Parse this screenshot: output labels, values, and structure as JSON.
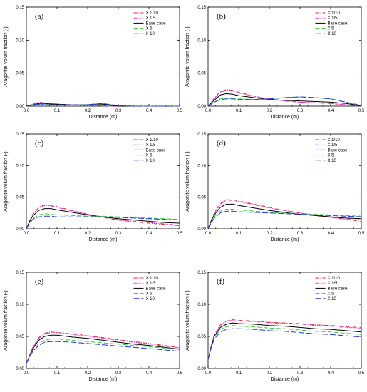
{
  "colors": {
    "X 1/10": "#e8203a",
    "X 1/5": "#e040d8",
    "Base case": "#000000",
    "X 5": "#33cc33",
    "X 10": "#2233dd"
  },
  "dashes": {
    "X 1/10": "5,2,1,2",
    "X 1/5": "5,2,1,2,1,2",
    "Base case": "",
    "X 5": "6,3",
    "X 10": "8,3"
  },
  "chart_data": [
    {
      "type": "line",
      "panel": "(a)",
      "xlabel": "Distance (m)",
      "ylabel": "Aragonite volum fraction (-)",
      "xlim": [
        0,
        0.5
      ],
      "ylim": [
        0,
        0.15
      ],
      "xticks": [
        "0.0",
        "0.1",
        "0.2",
        "0.3",
        "0.4",
        "0.5"
      ],
      "yticks": [
        "0.00",
        "0.05",
        "0.10",
        "0.15"
      ],
      "x": [
        0,
        0.02,
        0.04,
        0.06,
        0.08,
        0.1,
        0.15,
        0.2,
        0.22,
        0.25,
        0.28,
        0.3,
        0.35,
        0.4,
        0.45,
        0.5
      ],
      "series": [
        {
          "name": "X 1/10",
          "values": [
            0,
            0.003,
            0.006,
            0.005,
            0.004,
            0.003,
            0.002,
            0.001,
            0.001,
            0.0005,
            0,
            0,
            0,
            0,
            0,
            0
          ]
        },
        {
          "name": "X 1/5",
          "values": [
            0,
            0.003,
            0.006,
            0.005,
            0.004,
            0.003,
            0.002,
            0.0015,
            0.001,
            0.0005,
            0,
            0,
            0,
            0,
            0,
            0
          ]
        },
        {
          "name": "Base case",
          "values": [
            0,
            0.002,
            0.004,
            0.004,
            0.003,
            0.003,
            0.002,
            0.002,
            0.003,
            0.003,
            0.001,
            0,
            0,
            0,
            0,
            0
          ]
        },
        {
          "name": "X 5",
          "values": [
            0,
            0.002,
            0.003,
            0.003,
            0.002,
            0.002,
            0.002,
            0.002,
            0.003,
            0.004,
            0.002,
            0.001,
            0,
            0,
            0,
            0
          ]
        },
        {
          "name": "X 10",
          "values": [
            0,
            0.002,
            0.003,
            0.002,
            0.002,
            0.002,
            0.002,
            0.002,
            0.003,
            0.004,
            0.002,
            0.001,
            0,
            0,
            0,
            0
          ]
        }
      ],
      "legend": [
        "X 1/10",
        "X 1/5",
        "Base case",
        "X 5",
        "X 10"
      ]
    },
    {
      "type": "line",
      "panel": "(b)",
      "xlabel": "Distance (m)",
      "ylabel": "Aragonite volum fraction (-)",
      "xlim": [
        0,
        0.5
      ],
      "ylim": [
        0,
        0.15
      ],
      "xticks": [
        "0.0",
        "0.1",
        "0.2",
        "0.3",
        "0.4",
        "0.5"
      ],
      "yticks": [
        "0.00",
        "0.05",
        "0.10",
        "0.15"
      ],
      "x": [
        0,
        0.02,
        0.04,
        0.06,
        0.08,
        0.1,
        0.15,
        0.2,
        0.25,
        0.3,
        0.35,
        0.4,
        0.45,
        0.48,
        0.5
      ],
      "series": [
        {
          "name": "X 1/10",
          "values": [
            0,
            0.012,
            0.022,
            0.025,
            0.024,
            0.021,
            0.015,
            0.011,
            0.008,
            0.006,
            0.005,
            0.004,
            0.002,
            0.001,
            0
          ]
        },
        {
          "name": "X 1/5",
          "values": [
            0,
            0.011,
            0.021,
            0.024,
            0.023,
            0.02,
            0.015,
            0.011,
            0.008,
            0.006,
            0.005,
            0.004,
            0.002,
            0.001,
            0
          ]
        },
        {
          "name": "Base case",
          "values": [
            0,
            0.009,
            0.017,
            0.019,
            0.018,
            0.016,
            0.013,
            0.01,
            0.009,
            0.008,
            0.007,
            0.006,
            0.004,
            0.002,
            0
          ]
        },
        {
          "name": "X 5",
          "values": [
            0,
            0.006,
            0.011,
            0.012,
            0.011,
            0.011,
            0.01,
            0.011,
            0.013,
            0.014,
            0.013,
            0.011,
            0.006,
            0.003,
            0.001
          ]
        },
        {
          "name": "X 10",
          "values": [
            0,
            0.006,
            0.01,
            0.011,
            0.011,
            0.01,
            0.01,
            0.011,
            0.013,
            0.014,
            0.013,
            0.011,
            0.006,
            0.003,
            0.001
          ]
        }
      ],
      "legend": [
        "X 1/10",
        "X 1/5",
        "Base case",
        "X 5",
        "X 10"
      ]
    },
    {
      "type": "line",
      "panel": "(c)",
      "xlabel": "Distance (m)",
      "ylabel": "Aragonite volum fraction (-)",
      "xlim": [
        0,
        0.5
      ],
      "ylim": [
        0,
        0.15
      ],
      "xticks": [
        "0.0",
        "0.1",
        "0.2",
        "0.3",
        "0.4",
        "0.5"
      ],
      "yticks": [
        "0.00",
        "0.05",
        "0.10",
        "0.15"
      ],
      "x": [
        0,
        0.01,
        0.02,
        0.04,
        0.06,
        0.08,
        0.1,
        0.15,
        0.2,
        0.25,
        0.3,
        0.35,
        0.4,
        0.45,
        0.5
      ],
      "series": [
        {
          "name": "X 1/10",
          "values": [
            0,
            0.012,
            0.022,
            0.034,
            0.038,
            0.037,
            0.035,
            0.029,
            0.023,
            0.018,
            0.014,
            0.011,
            0.009,
            0.007,
            0.005
          ]
        },
        {
          "name": "X 1/5",
          "values": [
            0,
            0.012,
            0.022,
            0.033,
            0.037,
            0.036,
            0.034,
            0.028,
            0.023,
            0.018,
            0.015,
            0.012,
            0.01,
            0.008,
            0.006
          ]
        },
        {
          "name": "Base case",
          "values": [
            0,
            0.011,
            0.02,
            0.029,
            0.032,
            0.032,
            0.03,
            0.026,
            0.022,
            0.019,
            0.016,
            0.014,
            0.012,
            0.01,
            0.009
          ]
        },
        {
          "name": "X 5",
          "values": [
            0,
            0.009,
            0.016,
            0.022,
            0.024,
            0.023,
            0.022,
            0.021,
            0.02,
            0.02,
            0.019,
            0.018,
            0.017,
            0.016,
            0.015
          ]
        },
        {
          "name": "X 10",
          "values": [
            0,
            0.008,
            0.015,
            0.019,
            0.02,
            0.02,
            0.019,
            0.019,
            0.019,
            0.019,
            0.018,
            0.017,
            0.016,
            0.015,
            0.014
          ]
        }
      ],
      "legend": [
        "X 1/10",
        "X 1/5",
        "Base case",
        "X 5",
        "X 10"
      ]
    },
    {
      "type": "line",
      "panel": "(d)",
      "xlabel": "Distance (m)",
      "ylabel": "Aragonite volum fraction (-)",
      "xlim": [
        0,
        0.5
      ],
      "ylim": [
        0,
        0.15
      ],
      "xticks": [
        "0.0",
        "0.1",
        "0.2",
        "0.3",
        "0.4",
        "0.5"
      ],
      "yticks": [
        "0.00",
        "0.05",
        "0.10",
        "0.15"
      ],
      "x": [
        0,
        0.01,
        0.02,
        0.04,
        0.06,
        0.08,
        0.1,
        0.15,
        0.2,
        0.25,
        0.3,
        0.35,
        0.4,
        0.45,
        0.5
      ],
      "series": [
        {
          "name": "X 1/10",
          "values": [
            0,
            0.013,
            0.025,
            0.04,
            0.046,
            0.046,
            0.044,
            0.039,
            0.034,
            0.029,
            0.025,
            0.021,
            0.018,
            0.015,
            0.012
          ]
        },
        {
          "name": "X 1/5",
          "values": [
            0,
            0.013,
            0.024,
            0.039,
            0.045,
            0.045,
            0.043,
            0.038,
            0.033,
            0.029,
            0.025,
            0.022,
            0.019,
            0.016,
            0.014
          ]
        },
        {
          "name": "Base case",
          "values": [
            0,
            0.012,
            0.022,
            0.034,
            0.039,
            0.039,
            0.037,
            0.033,
            0.029,
            0.026,
            0.023,
            0.021,
            0.019,
            0.017,
            0.016
          ]
        },
        {
          "name": "X 5",
          "values": [
            0,
            0.01,
            0.019,
            0.028,
            0.031,
            0.031,
            0.03,
            0.028,
            0.026,
            0.025,
            0.024,
            0.023,
            0.022,
            0.021,
            0.02
          ]
        },
        {
          "name": "X 10",
          "values": [
            0,
            0.009,
            0.017,
            0.025,
            0.028,
            0.028,
            0.027,
            0.026,
            0.025,
            0.024,
            0.023,
            0.022,
            0.021,
            0.02,
            0.019
          ]
        }
      ],
      "legend": [
        "X 1/10",
        "X 1/5",
        "Base case",
        "X 5",
        "X 10"
      ]
    },
    {
      "type": "line",
      "panel": "(e)",
      "xlabel": "Distance (m)",
      "ylabel": "Aragonite volum fraction (-)",
      "xlim": [
        0,
        0.5
      ],
      "ylim": [
        0,
        0.15
      ],
      "xticks": [
        "0.0",
        "0.1",
        "0.2",
        "0.3",
        "0.4",
        "0.5"
      ],
      "yticks": [
        "0.00",
        "0.05",
        "0.10",
        "0.15"
      ],
      "x": [
        0,
        0.01,
        0.02,
        0.04,
        0.06,
        0.08,
        0.1,
        0.15,
        0.2,
        0.25,
        0.3,
        0.35,
        0.4,
        0.45,
        0.5
      ],
      "series": [
        {
          "name": "X 1/10",
          "values": [
            0.008,
            0.02,
            0.032,
            0.048,
            0.055,
            0.057,
            0.056,
            0.054,
            0.051,
            0.048,
            0.045,
            0.042,
            0.039,
            0.036,
            0.033
          ]
        },
        {
          "name": "X 1/5",
          "values": [
            0.008,
            0.02,
            0.032,
            0.047,
            0.054,
            0.056,
            0.056,
            0.053,
            0.05,
            0.047,
            0.044,
            0.041,
            0.038,
            0.035,
            0.032
          ]
        },
        {
          "name": "Base case",
          "values": [
            0.008,
            0.019,
            0.03,
            0.044,
            0.05,
            0.052,
            0.052,
            0.049,
            0.047,
            0.044,
            0.041,
            0.038,
            0.036,
            0.033,
            0.03
          ]
        },
        {
          "name": "X 5",
          "values": [
            0.008,
            0.018,
            0.027,
            0.039,
            0.044,
            0.046,
            0.046,
            0.044,
            0.042,
            0.04,
            0.038,
            0.036,
            0.034,
            0.032,
            0.03
          ]
        },
        {
          "name": "X 10",
          "values": [
            0.008,
            0.017,
            0.026,
            0.036,
            0.041,
            0.042,
            0.042,
            0.041,
            0.039,
            0.037,
            0.035,
            0.033,
            0.031,
            0.029,
            0.027
          ]
        }
      ],
      "legend": [
        "X 1/10",
        "X 1/5",
        "Base case",
        "X 5",
        "X 10"
      ]
    },
    {
      "type": "line",
      "panel": "(f)",
      "xlabel": "Distance (m)",
      "ylabel": "Aragonite volum fraction (-)",
      "xlim": [
        0,
        0.5
      ],
      "ylim": [
        0,
        0.15
      ],
      "xticks": [
        "0.0",
        "0.1",
        "0.2",
        "0.3",
        "0.4",
        "0.5"
      ],
      "yticks": [
        "0.00",
        "0.05",
        "0.10",
        "0.15"
      ],
      "x": [
        0,
        0.01,
        0.02,
        0.04,
        0.06,
        0.08,
        0.1,
        0.15,
        0.2,
        0.25,
        0.3,
        0.35,
        0.4,
        0.45,
        0.5
      ],
      "series": [
        {
          "name": "X 1/10",
          "values": [
            0.014,
            0.035,
            0.052,
            0.068,
            0.074,
            0.076,
            0.075,
            0.074,
            0.072,
            0.071,
            0.07,
            0.068,
            0.067,
            0.065,
            0.064
          ]
        },
        {
          "name": "X 1/5",
          "values": [
            0.014,
            0.035,
            0.051,
            0.067,
            0.073,
            0.075,
            0.074,
            0.073,
            0.071,
            0.07,
            0.069,
            0.067,
            0.066,
            0.064,
            0.063
          ]
        },
        {
          "name": "Base case",
          "values": [
            0.014,
            0.034,
            0.05,
            0.064,
            0.069,
            0.071,
            0.07,
            0.069,
            0.067,
            0.066,
            0.064,
            0.062,
            0.061,
            0.059,
            0.057
          ]
        },
        {
          "name": "X 5",
          "values": [
            0.014,
            0.033,
            0.048,
            0.061,
            0.065,
            0.067,
            0.066,
            0.065,
            0.063,
            0.062,
            0.06,
            0.058,
            0.057,
            0.055,
            0.053
          ]
        },
        {
          "name": "X 10",
          "values": [
            0.014,
            0.032,
            0.046,
            0.057,
            0.061,
            0.062,
            0.062,
            0.061,
            0.059,
            0.058,
            0.056,
            0.054,
            0.053,
            0.051,
            0.049
          ]
        }
      ],
      "legend": [
        "X 1/10",
        "X 1/5",
        "Base case",
        "X 5",
        "X 10"
      ]
    }
  ]
}
